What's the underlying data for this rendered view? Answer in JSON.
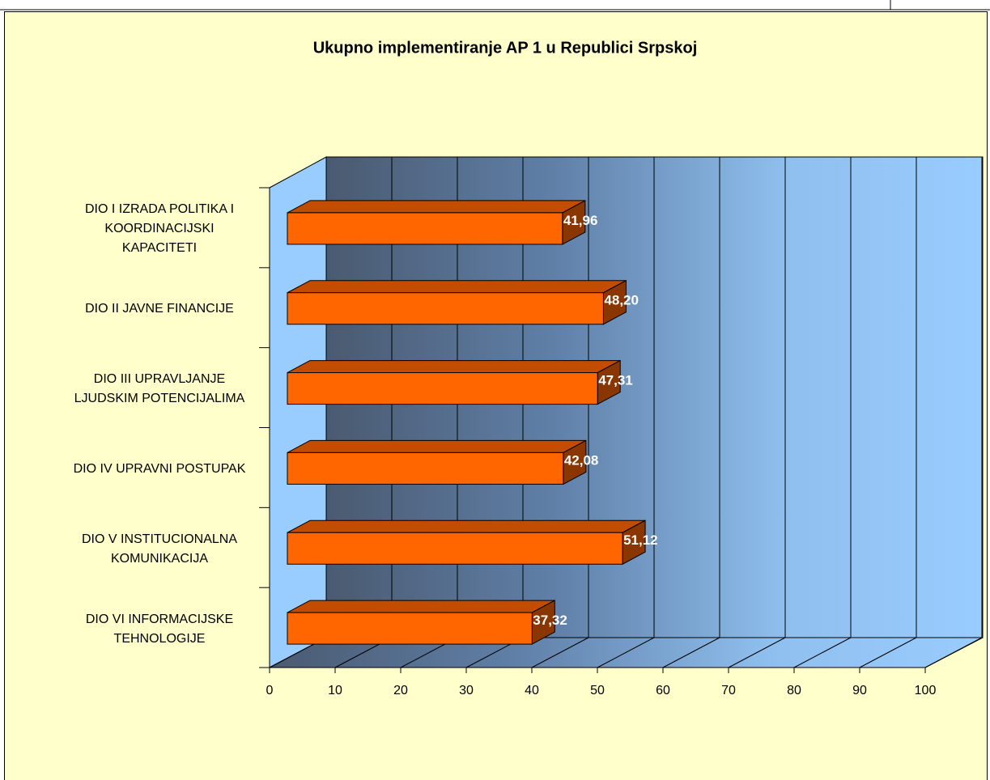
{
  "chart_data": {
    "type": "bar3d",
    "title": "Ukupno implementiranje AP 1 u Republici Srpskoj",
    "categories": [
      "DIO I IZRADA POLITIKA I\nKOORDINACIJSKI\nKAPACITETI",
      "DIO II JAVNE FINANCIJE",
      "DIO III UPRAVLJANJE\nLJUDSKIM POTENCIJALIMA",
      "DIO IV UPRAVNI POSTUPAK",
      "DIO V INSTITUCIONALNA\nKOMUNIKACIJA",
      "DIO VI INFORMACIJSKE\nTEHNOLOGIJE"
    ],
    "values": [
      41.96,
      48.2,
      47.31,
      42.08,
      51.12,
      37.32
    ],
    "value_labels": [
      "41,96",
      "48,20",
      "47,31",
      "42,08",
      "51,12",
      "37,32"
    ],
    "color": "#ff6600",
    "xlim": [
      0,
      100
    ],
    "xticks": [
      0,
      10,
      20,
      30,
      40,
      50,
      60,
      70,
      80,
      90,
      100
    ],
    "grid": true
  }
}
